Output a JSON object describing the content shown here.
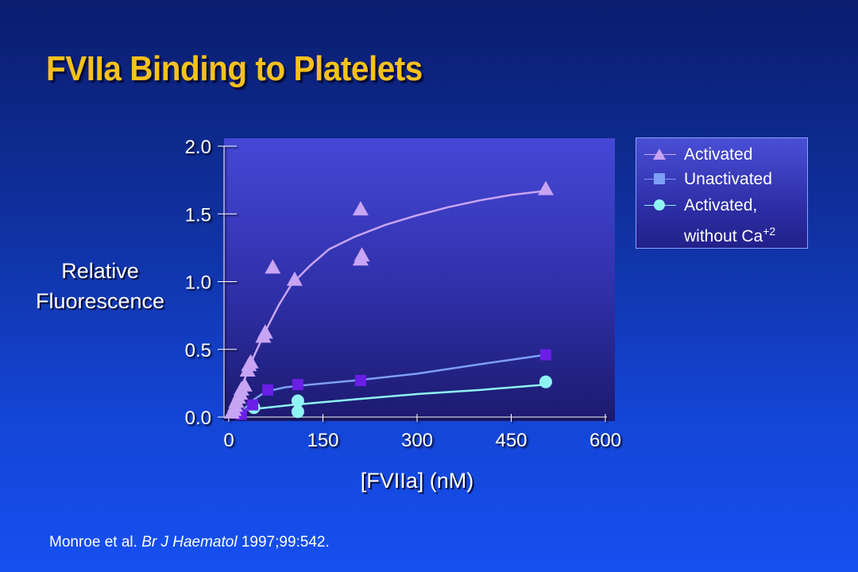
{
  "slide": {
    "title": "FVIIa Binding to Platelets",
    "citation": {
      "authors": "Monroe et al.",
      "journal": "Br J Haematol",
      "ref": "1997;99:542."
    }
  },
  "colors": {
    "title": "#f6c11c",
    "activated": "#c8a4f4",
    "activated_line": "#c8a4f4",
    "unactivated": "#6a1ee6",
    "unactivated_line": "#7d9ff5",
    "no_ca": "#8ff4f4",
    "no_ca_line": "#8ff4f4"
  },
  "chart_data": {
    "type": "scatter",
    "title": "",
    "xlabel": "[FVIIa] (nM)",
    "ylabel_lines": [
      "Relative",
      "Fluorescence"
    ],
    "x_ticks": [
      0,
      150,
      300,
      450,
      600
    ],
    "y_ticks": [
      "0.0",
      "0.5",
      "1.0",
      "1.5",
      "2.0"
    ],
    "xlim": [
      0,
      600
    ],
    "ylim": [
      0,
      2.0
    ],
    "grid": false,
    "legend_position": "top-right",
    "series": [
      {
        "key": "activated",
        "name": "Activated",
        "marker": "triangle",
        "points": [
          [
            5,
            0.03
          ],
          [
            8,
            0.05
          ],
          [
            10,
            0.08
          ],
          [
            12,
            0.11
          ],
          [
            15,
            0.14
          ],
          [
            18,
            0.17
          ],
          [
            20,
            0.2
          ],
          [
            25,
            0.23
          ],
          [
            30,
            0.34
          ],
          [
            32,
            0.38
          ],
          [
            35,
            0.4
          ],
          [
            55,
            0.59
          ],
          [
            58,
            0.62
          ],
          [
            70,
            1.1
          ],
          [
            105,
            1.01
          ],
          [
            210,
            1.53
          ],
          [
            210,
            1.16
          ],
          [
            212,
            1.19
          ],
          [
            505,
            1.68
          ]
        ],
        "fit": [
          [
            5,
            0.05
          ],
          [
            20,
            0.22
          ],
          [
            40,
            0.45
          ],
          [
            60,
            0.65
          ],
          [
            80,
            0.83
          ],
          [
            100,
            0.98
          ],
          [
            130,
            1.12
          ],
          [
            160,
            1.24
          ],
          [
            200,
            1.33
          ],
          [
            250,
            1.42
          ],
          [
            300,
            1.49
          ],
          [
            350,
            1.55
          ],
          [
            400,
            1.6
          ],
          [
            450,
            1.64
          ],
          [
            505,
            1.67
          ]
        ]
      },
      {
        "key": "unactivated",
        "name": "Unactivated",
        "marker": "square",
        "points": [
          [
            20,
            0.02
          ],
          [
            38,
            0.09
          ],
          [
            62,
            0.2
          ],
          [
            110,
            0.24
          ],
          [
            210,
            0.27
          ],
          [
            505,
            0.46
          ]
        ],
        "fit": [
          [
            20,
            0.04
          ],
          [
            40,
            0.13
          ],
          [
            60,
            0.19
          ],
          [
            90,
            0.22
          ],
          [
            130,
            0.24
          ],
          [
            200,
            0.27
          ],
          [
            300,
            0.32
          ],
          [
            400,
            0.39
          ],
          [
            505,
            0.46
          ]
        ]
      },
      {
        "key": "no_ca",
        "name_lines": [
          "Activated,",
          "without Ca"
        ],
        "name_sup": "+2",
        "marker": "circle",
        "points": [
          [
            40,
            0.07
          ],
          [
            110,
            0.04
          ],
          [
            110,
            0.12
          ],
          [
            505,
            0.26
          ]
        ],
        "fit": [
          [
            20,
            0.05
          ],
          [
            100,
            0.09
          ],
          [
            200,
            0.13
          ],
          [
            300,
            0.17
          ],
          [
            400,
            0.2
          ],
          [
            505,
            0.24
          ]
        ]
      }
    ]
  }
}
